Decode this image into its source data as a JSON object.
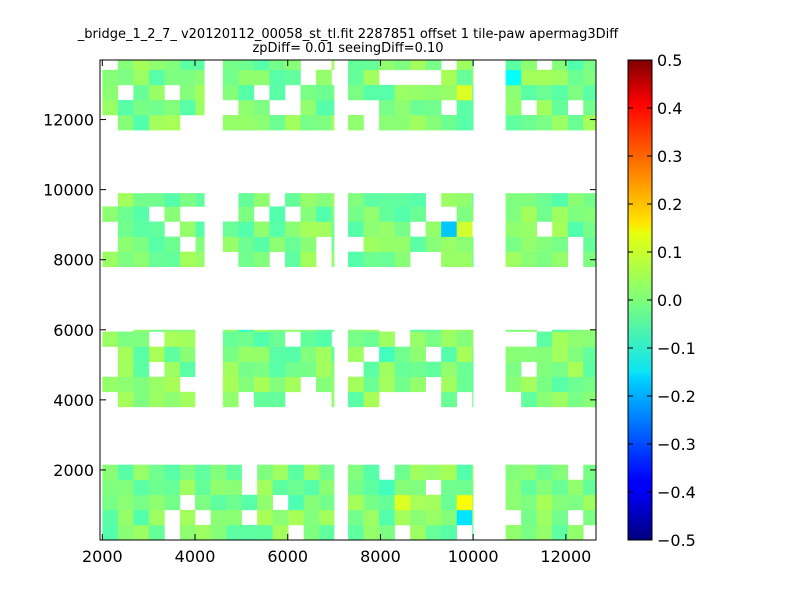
{
  "chart_data": {
    "type": "heatmap",
    "title": "_bridge_1_2_7_ v20120112_00058_st_tl.fit 2287851 offset 1 tile-paw apermag3Diff",
    "subtitle": "zpDiff= 0.01 seeingDiff=0.10",
    "xlim": [
      1950,
      12650
    ],
    "ylim": [
      0,
      13700
    ],
    "xticks": [
      2000,
      4000,
      6000,
      8000,
      10000,
      12000
    ],
    "xtick_labels": [
      "2000",
      "4000",
      "6000",
      "8000",
      "10000",
      "12000"
    ],
    "yticks": [
      2000,
      4000,
      6000,
      8000,
      10000,
      12000
    ],
    "ytick_labels": [
      "2000",
      "4000",
      "6000",
      "8000",
      "10000",
      "12000"
    ],
    "grid": false,
    "cell_size": [
      335,
      430
    ],
    "colormap": "jet",
    "colorbar": {
      "range": [
        -0.5,
        0.5
      ],
      "ticks": [
        0.5,
        0.4,
        0.3,
        0.2,
        0.1,
        0.0,
        -0.1,
        -0.2,
        -0.3,
        -0.4,
        -0.5
      ],
      "tick_labels": [
        "0.5",
        "0.4",
        "0.3",
        "0.2",
        "0.1",
        "0.0",
        "−0.1",
        "−0.2",
        "−0.3",
        "−0.4",
        "−0.5"
      ]
    },
    "chips": [
      {
        "x0": 2000,
        "x1": 4000,
        "y0": 0,
        "y1": 2150
      },
      {
        "x0": 4000,
        "x1": 7000,
        "y0": 0,
        "y1": 2150
      },
      {
        "x0": 7300,
        "x1": 10000,
        "y0": 0,
        "y1": 2150
      },
      {
        "x0": 10700,
        "x1": 12650,
        "y0": 0,
        "y1": 2150
      },
      {
        "x0": 2000,
        "x1": 4000,
        "y0": 3800,
        "y1": 6000
      },
      {
        "x0": 4600,
        "x1": 7000,
        "y0": 3800,
        "y1": 6000
      },
      {
        "x0": 7300,
        "x1": 10000,
        "y0": 3800,
        "y1": 6000
      },
      {
        "x0": 10700,
        "x1": 12650,
        "y0": 3800,
        "y1": 6000
      },
      {
        "x0": 2000,
        "x1": 4200,
        "y0": 7800,
        "y1": 9900
      },
      {
        "x0": 4600,
        "x1": 7000,
        "y0": 7800,
        "y1": 9900
      },
      {
        "x0": 7300,
        "x1": 10000,
        "y0": 7800,
        "y1": 9900
      },
      {
        "x0": 10700,
        "x1": 12650,
        "y0": 7800,
        "y1": 9900
      },
      {
        "x0": 2000,
        "x1": 4200,
        "y0": 11700,
        "y1": 13700
      },
      {
        "x0": 4600,
        "x1": 7000,
        "y0": 11700,
        "y1": 13700
      },
      {
        "x0": 7300,
        "x1": 10000,
        "y0": 11700,
        "y1": 13700
      },
      {
        "x0": 10700,
        "x1": 12650,
        "y0": 11700,
        "y1": 13700
      }
    ],
    "highlights": [
      {
        "x": 9200,
        "y": 8800,
        "value": -0.18
      },
      {
        "x": 9500,
        "y": 600,
        "value": -0.15
      },
      {
        "x": 9500,
        "y": 1000,
        "value": 0.12
      },
      {
        "x": 8200,
        "y": 1000,
        "value": 0.09
      },
      {
        "x": 9500,
        "y": 8800,
        "value": 0.08
      },
      {
        "x": 9500,
        "y": 12500,
        "value": 0.09
      },
      {
        "x": 10900,
        "y": 13300,
        "value": -0.12
      },
      {
        "x": 4800,
        "y": 5800,
        "value": -0.07
      },
      {
        "x": 7800,
        "y": 1700,
        "value": -0.06
      },
      {
        "x": 7800,
        "y": 4900,
        "value": -0.06
      },
      {
        "x": 7800,
        "y": 9800,
        "value": -0.03
      },
      {
        "x": 5400,
        "y": 8800,
        "value": -0.04
      },
      {
        "x": 6000,
        "y": 1000,
        "value": -0.05
      },
      {
        "x": 11900,
        "y": 13300,
        "value": 0.03
      }
    ]
  }
}
